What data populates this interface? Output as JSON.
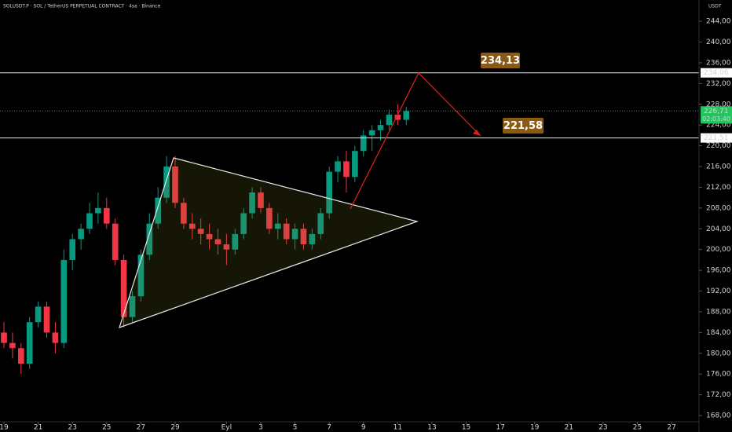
{
  "chart_data": {
    "type": "candlestick",
    "title": "SOLUSDT.P · SOL / TetherUS PERPETUAL CONTRACT · 4sa · Binance",
    "unit": "USDT",
    "up_color": "#089981",
    "down_color": "#f23645",
    "x": [
      0,
      0.5,
      1,
      1.5,
      2,
      2.5,
      3,
      3.5,
      4,
      4.5,
      5,
      5.5,
      6,
      6.5,
      7,
      7.5,
      8,
      8.5,
      9,
      9.5,
      10,
      10.5,
      11,
      11.5,
      12,
      12.5,
      13,
      13.5,
      14,
      14.5,
      15,
      15.5,
      16,
      16.5,
      17,
      17.5,
      18,
      18.5,
      19,
      19.5,
      20,
      20.5,
      21,
      21.5,
      22,
      22.5,
      23,
      23.5
    ],
    "open": [
      184,
      182,
      181,
      178,
      186,
      189,
      184,
      182,
      198,
      202,
      204,
      207,
      208,
      205,
      198,
      187,
      191,
      199,
      205,
      210,
      216,
      209,
      205,
      204,
      203,
      202,
      201,
      200,
      203,
      207,
      211,
      208,
      204,
      205,
      202,
      204,
      201,
      203,
      207,
      215,
      217,
      214,
      219,
      222,
      223,
      224,
      226,
      225
    ],
    "high": [
      186,
      184,
      182,
      187,
      190,
      190,
      186,
      200,
      203,
      205,
      209,
      211,
      210,
      206,
      199,
      192,
      200,
      207,
      212,
      218,
      218,
      210,
      207,
      206,
      205,
      204,
      203,
      204,
      208,
      212,
      212,
      209,
      207,
      206,
      205,
      205,
      204,
      208,
      216,
      218,
      219,
      220,
      223,
      224,
      225,
      227,
      228,
      227.5
    ],
    "low": [
      181,
      179,
      176,
      177,
      185,
      183,
      180,
      181,
      196,
      200,
      203,
      205,
      204,
      197,
      185,
      186,
      190,
      198,
      204,
      209,
      208,
      204,
      202,
      201,
      200,
      199,
      197,
      199,
      202,
      206,
      207,
      203,
      202,
      201,
      200,
      200,
      200,
      202,
      206,
      213,
      211,
      213,
      218,
      219,
      221,
      223,
      224,
      224
    ],
    "close": [
      182,
      181,
      178,
      186,
      189,
      184,
      182,
      198,
      202,
      204,
      207,
      208,
      205,
      198,
      187,
      191,
      199,
      205,
      210,
      216,
      209,
      205,
      204,
      203,
      202,
      201,
      200,
      203,
      207,
      211,
      208,
      204,
      205,
      202,
      204,
      201,
      203,
      207,
      215,
      217,
      214,
      219,
      222,
      223,
      224,
      226,
      225,
      226.71
    ],
    "xlim": [
      -0.23,
      40.6
    ],
    "ylim": [
      166.8,
      248.1
    ],
    "xticks": [
      {
        "value": 0,
        "label": "19"
      },
      {
        "value": 2,
        "label": "21"
      },
      {
        "value": 4,
        "label": "23"
      },
      {
        "value": 6,
        "label": "25"
      },
      {
        "value": 8,
        "label": "27"
      },
      {
        "value": 10,
        "label": "29"
      },
      {
        "value": 13,
        "label": "Eyl"
      },
      {
        "value": 15,
        "label": "3"
      },
      {
        "value": 17,
        "label": "5"
      },
      {
        "value": 19,
        "label": "7"
      },
      {
        "value": 21,
        "label": "9"
      },
      {
        "value": 23,
        "label": "11"
      },
      {
        "value": 25,
        "label": "13"
      },
      {
        "value": 27,
        "label": "15"
      },
      {
        "value": 29,
        "label": "17"
      },
      {
        "value": 31,
        "label": "19"
      },
      {
        "value": 33,
        "label": "21"
      },
      {
        "value": 35,
        "label": "23"
      },
      {
        "value": 37,
        "label": "25"
      },
      {
        "value": 39,
        "label": "27"
      }
    ],
    "yticks": [
      {
        "value": 168,
        "label": "168,00"
      },
      {
        "value": 172,
        "label": "172,00"
      },
      {
        "value": 176,
        "label": "176,00"
      },
      {
        "value": 180,
        "label": "180,00"
      },
      {
        "value": 184,
        "label": "184,00"
      },
      {
        "value": 188,
        "label": "188,00"
      },
      {
        "value": 192,
        "label": "192,00"
      },
      {
        "value": 196,
        "label": "196,00"
      },
      {
        "value": 200,
        "label": "200,00"
      },
      {
        "value": 204,
        "label": "204,00"
      },
      {
        "value": 208,
        "label": "208,00"
      },
      {
        "value": 212,
        "label": "212,00"
      },
      {
        "value": 216,
        "label": "216,00"
      },
      {
        "value": 220,
        "label": "220,00"
      },
      {
        "value": 224,
        "label": "224,00"
      },
      {
        "value": 228,
        "label": "228,00"
      },
      {
        "value": 232,
        "label": "232,00"
      },
      {
        "value": 236,
        "label": "236,00"
      },
      {
        "value": 240,
        "label": "240,00"
      },
      {
        "value": 244,
        "label": "244,00"
      }
    ],
    "hlines": [
      {
        "value": 234.06,
        "label": "234,06"
      },
      {
        "value": 221.51,
        "label": "221,51"
      }
    ],
    "last_price": {
      "value": 226.71,
      "label": "226,71",
      "countdown": "02:03:40"
    },
    "annotations": [
      "234,13",
      "221,58"
    ]
  }
}
